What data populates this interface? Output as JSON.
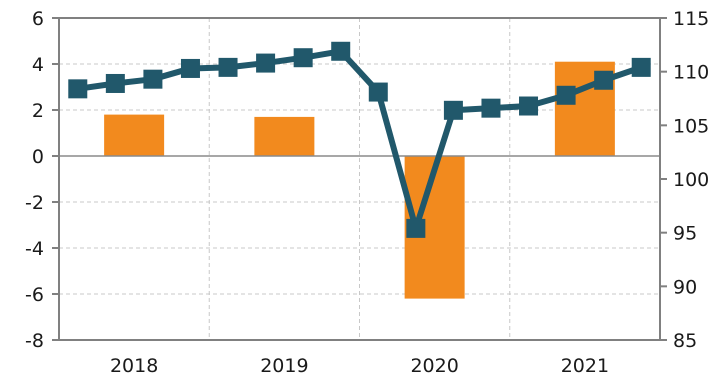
{
  "chart_data": {
    "type": "bar+line",
    "title": "",
    "x_groups": [
      "2018",
      "2019",
      "2020",
      "2021"
    ],
    "left_axis": {
      "ylim": [
        -8,
        6
      ],
      "ticks": [
        "6",
        "4",
        "2",
        "0",
        "-2",
        "-4",
        "-6",
        "-8"
      ]
    },
    "right_axis": {
      "ylim": [
        85,
        115
      ],
      "ticks": [
        "115",
        "110",
        "105",
        "100",
        "95",
        "90",
        "85"
      ]
    },
    "bars": {
      "axis": "left",
      "color": "#F28A1E",
      "values": [
        {
          "x": "2018",
          "value": 1.8
        },
        {
          "x": "2019",
          "value": 1.7
        },
        {
          "x": "2020",
          "value": -6.2
        },
        {
          "x": "2021",
          "value": 4.1
        }
      ]
    },
    "line": {
      "axis": "right",
      "color": "#21586B",
      "quarters": [
        "2018 Q1",
        "2018 Q2",
        "2018 Q3",
        "2018 Q4",
        "2019 Q1",
        "2019 Q2",
        "2019 Q3",
        "2019 Q4",
        "2020 Q1",
        "2020 Q2",
        "2020 Q3",
        "2020 Q4",
        "2021 Q1",
        "2021 Q2",
        "2021 Q3",
        "2021 Q4"
      ],
      "values": [
        108.4,
        108.9,
        109.3,
        110.3,
        110.4,
        110.8,
        111.3,
        111.9,
        108.1,
        95.4,
        106.4,
        106.6,
        106.8,
        107.8,
        109.2,
        110.4
      ]
    },
    "grid": true,
    "legend": "none"
  }
}
